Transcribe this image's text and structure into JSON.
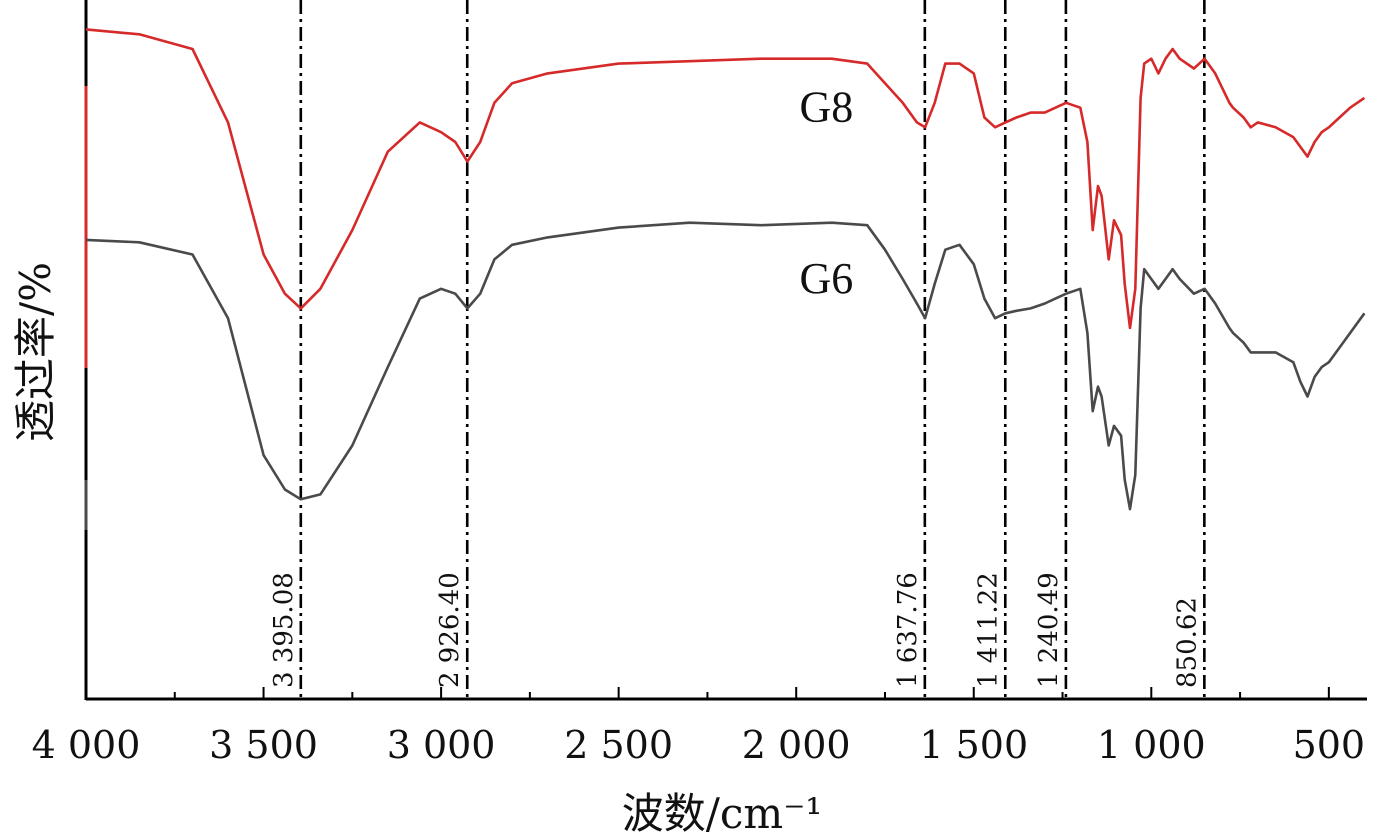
{
  "chart_data": {
    "type": "line",
    "xlabel": "波数/cm⁻¹",
    "ylabel": "透过率/%",
    "xlim": [
      4000,
      400
    ],
    "x_reversed": true,
    "grid": false,
    "legend": "none",
    "x_ticks": [
      4000,
      3500,
      3000,
      2500,
      2000,
      1500,
      1000,
      500
    ],
    "x_tick_labels": [
      "4 000",
      "3 500",
      "3 000",
      "2 500",
      "2 000",
      "1 500",
      "1 000",
      "500"
    ],
    "peak_lines": [
      {
        "x": 3395.08,
        "label": "3 395.08"
      },
      {
        "x": 2926.4,
        "label": "2 926.40"
      },
      {
        "x": 1637.76,
        "label": "1 637.76"
      },
      {
        "x": 1411.22,
        "label": "1 411.22"
      },
      {
        "x": 1240.49,
        "label": "1 240.49"
      },
      {
        "x": 850.62,
        "label": "850.62"
      }
    ],
    "series": [
      {
        "name": "G8",
        "color": "#d62a2a",
        "x": [
          4000,
          3850,
          3700,
          3600,
          3500,
          3440,
          3395,
          3340,
          3250,
          3150,
          3060,
          3000,
          2960,
          2926,
          2890,
          2850,
          2800,
          2700,
          2500,
          2300,
          2100,
          1900,
          1800,
          1750,
          1700,
          1660,
          1637,
          1610,
          1580,
          1540,
          1500,
          1470,
          1440,
          1411,
          1380,
          1340,
          1300,
          1270,
          1240,
          1200,
          1180,
          1165,
          1150,
          1140,
          1120,
          1105,
          1085,
          1075,
          1060,
          1045,
          1030,
          1020,
          1000,
          980,
          960,
          940,
          920,
          880,
          850,
          820,
          780,
          770,
          740,
          720,
          700,
          650,
          600,
          580,
          560,
          540,
          520,
          500,
          470,
          440,
          400
        ],
        "y": [
          99,
          98,
          95,
          80,
          53,
          45,
          42,
          46,
          58,
          74,
          80,
          78,
          76,
          72,
          76,
          84,
          88,
          90,
          92,
          92.5,
          93,
          93,
          92,
          88,
          84,
          80,
          79,
          84,
          92,
          92,
          90,
          81,
          79,
          80,
          81,
          82,
          82,
          83,
          84,
          83,
          76,
          58,
          67,
          65,
          52,
          60,
          57,
          47,
          38,
          46,
          85,
          92,
          93,
          90,
          93,
          95,
          93,
          91,
          93,
          90,
          84,
          83,
          81,
          79,
          80,
          79,
          77,
          75,
          73,
          76,
          78,
          79,
          81,
          83,
          85
        ]
      },
      {
        "name": "G6",
        "color": "#4a4a4a",
        "x": [
          4000,
          3850,
          3700,
          3600,
          3500,
          3440,
          3395,
          3340,
          3250,
          3150,
          3060,
          3000,
          2960,
          2926,
          2890,
          2850,
          2800,
          2700,
          2500,
          2300,
          2100,
          1900,
          1800,
          1750,
          1700,
          1660,
          1637,
          1610,
          1580,
          1540,
          1500,
          1470,
          1440,
          1411,
          1380,
          1340,
          1300,
          1270,
          1240,
          1200,
          1180,
          1165,
          1150,
          1140,
          1120,
          1105,
          1085,
          1075,
          1060,
          1045,
          1030,
          1020,
          1000,
          980,
          960,
          940,
          920,
          880,
          850,
          820,
          780,
          770,
          740,
          720,
          700,
          650,
          600,
          580,
          560,
          540,
          520,
          500,
          470,
          440,
          400
        ],
        "y": [
          56,
          55.5,
          53,
          40,
          12,
          5,
          3,
          4,
          14,
          30,
          44,
          46,
          45,
          42,
          45,
          52,
          55,
          56.5,
          58.5,
          59.5,
          59,
          59.5,
          59,
          54,
          48,
          43,
          40,
          47,
          54,
          55,
          51,
          44,
          40,
          41,
          41.5,
          42,
          43,
          44,
          45,
          46,
          37,
          21,
          26,
          24,
          14,
          18,
          16,
          7,
          1,
          8,
          42,
          50,
          48,
          46,
          48,
          50,
          48,
          45,
          46,
          43,
          38,
          37,
          35,
          33,
          33,
          33,
          31,
          27,
          24,
          28,
          30,
          31,
          34,
          37,
          41
        ]
      }
    ],
    "series_labels": [
      {
        "text": "G8",
        "x": 1915,
        "y": 83
      },
      {
        "text": "G6",
        "x": 1915,
        "y": 48
      }
    ]
  }
}
